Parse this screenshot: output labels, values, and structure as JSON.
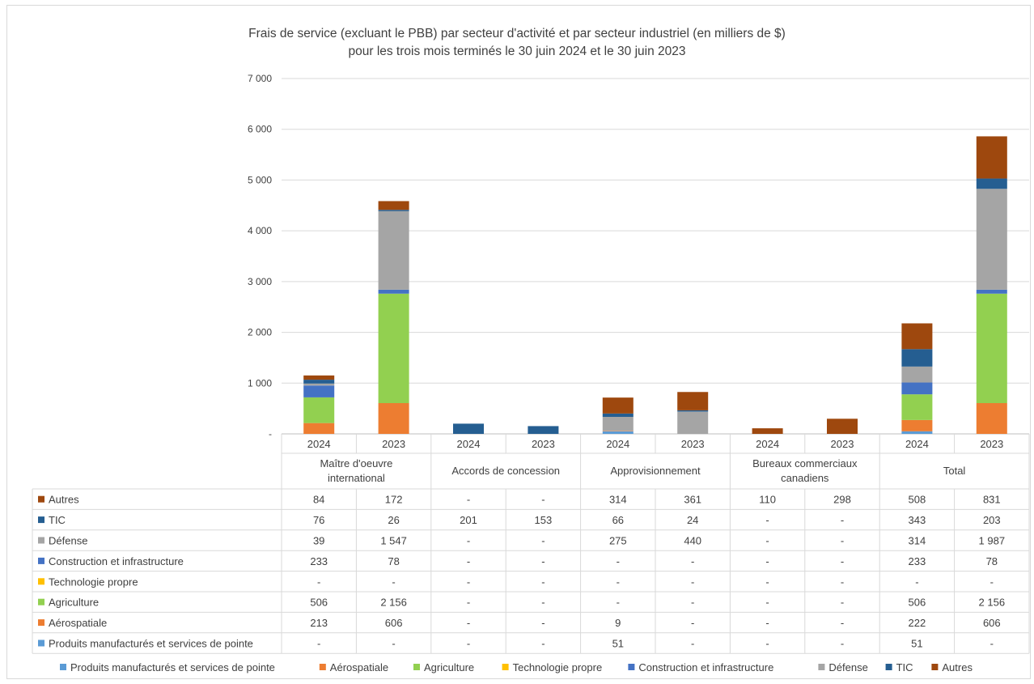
{
  "chart_data": {
    "type": "bar",
    "stacked": true,
    "title": "Frais de service (excluant le PBB) par secteur d'activité et par secteur industriel  (en milliers de $)",
    "subtitle": "pour les trois mois terminés le 30 juin 2024 et le 30 juin 2023",
    "ylim": [
      0,
      7000
    ],
    "yticks": [
      "-",
      "1 000",
      "2 000",
      "3 000",
      "4 000",
      "5 000",
      "6 000",
      "7 000"
    ],
    "ytick_values": [
      0,
      1000,
      2000,
      3000,
      4000,
      5000,
      6000,
      7000
    ],
    "grid": true,
    "legend_position": "bottom",
    "groups": [
      {
        "label": "Maître d'oeuvre international",
        "lines": [
          "Maître d'oeuvre",
          "international"
        ]
      },
      {
        "label": "Accords de concession",
        "lines": [
          "Accords de concession"
        ]
      },
      {
        "label": "Approvisionnement",
        "lines": [
          "Approvisionnement"
        ]
      },
      {
        "label": "Bureaux commerciaux canadiens",
        "lines": [
          "Bureaux commerciaux",
          "canadiens"
        ]
      },
      {
        "label": "Total",
        "lines": [
          "Total"
        ]
      }
    ],
    "categories": [
      "2024",
      "2023",
      "2024",
      "2023",
      "2024",
      "2023",
      "2024",
      "2023",
      "2024",
      "2023"
    ],
    "series": [
      {
        "name": "Produits manufacturés et services de pointe",
        "color": "#5b9bd5",
        "values": [
          0,
          0,
          0,
          0,
          51,
          0,
          0,
          0,
          51,
          0
        ],
        "labels": [
          "-",
          "-",
          "-",
          "-",
          "51",
          "-",
          "-",
          "-",
          "51",
          "-"
        ]
      },
      {
        "name": "Aérospatiale",
        "color": "#ed7d31",
        "values": [
          213,
          606,
          0,
          0,
          9,
          0,
          0,
          0,
          222,
          606
        ],
        "labels": [
          "213",
          "606",
          "-",
          "-",
          "9",
          "-",
          "-",
          "-",
          "222",
          "606"
        ]
      },
      {
        "name": "Agriculture",
        "color": "#92d050",
        "values": [
          506,
          2156,
          0,
          0,
          0,
          0,
          0,
          0,
          506,
          2156
        ],
        "labels": [
          "506",
          "2 156",
          "-",
          "-",
          "-",
          "-",
          "-",
          "-",
          "506",
          "2 156"
        ]
      },
      {
        "name": "Technologie propre",
        "color": "#ffc000",
        "values": [
          0,
          0,
          0,
          0,
          0,
          0,
          0,
          0,
          0,
          0
        ],
        "labels": [
          "-",
          "-",
          "-",
          "-",
          "-",
          "-",
          "-",
          "-",
          "-",
          "-"
        ]
      },
      {
        "name": "Construction et infrastructure",
        "color": "#4472c4",
        "values": [
          233,
          78,
          0,
          0,
          0,
          0,
          0,
          0,
          233,
          78
        ],
        "labels": [
          "233",
          "78",
          "-",
          "-",
          "-",
          "-",
          "-",
          "-",
          "233",
          "78"
        ]
      },
      {
        "name": "Défense",
        "color": "#a5a5a5",
        "values": [
          39,
          1547,
          0,
          0,
          275,
          440,
          0,
          0,
          314,
          1987
        ],
        "labels": [
          "39",
          "1 547",
          "-",
          "-",
          "275",
          "440",
          "-",
          "-",
          "314",
          "1 987"
        ]
      },
      {
        "name": "TIC",
        "color": "#255e91",
        "values": [
          76,
          26,
          201,
          153,
          66,
          24,
          0,
          0,
          343,
          203
        ],
        "labels": [
          "76",
          "26",
          "201",
          "153",
          "66",
          "24",
          "-",
          "-",
          "343",
          "203"
        ]
      },
      {
        "name": "Autres",
        "color": "#9e480e",
        "values": [
          84,
          172,
          0,
          0,
          314,
          361,
          110,
          298,
          508,
          831
        ],
        "labels": [
          "84",
          "172",
          "-",
          "-",
          "314",
          "361",
          "110",
          "298",
          "508",
          "831"
        ]
      }
    ]
  }
}
